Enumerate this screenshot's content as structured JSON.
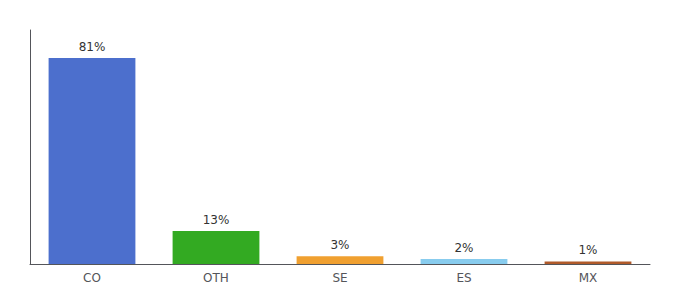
{
  "chart_data": {
    "type": "bar",
    "categories": [
      "CO",
      "OTH",
      "SE",
      "ES",
      "MX"
    ],
    "values": [
      81,
      13,
      3,
      2,
      1
    ],
    "value_labels": [
      "81%",
      "13%",
      "3%",
      "2%",
      "1%"
    ],
    "colors": [
      "#4c6fcd",
      "#33aa22",
      "#f0a030",
      "#88ccee",
      "#b05a2a"
    ],
    "ylim": [
      0,
      92
    ],
    "grid": false,
    "data_labels": true,
    "tick_labels": "x"
  }
}
